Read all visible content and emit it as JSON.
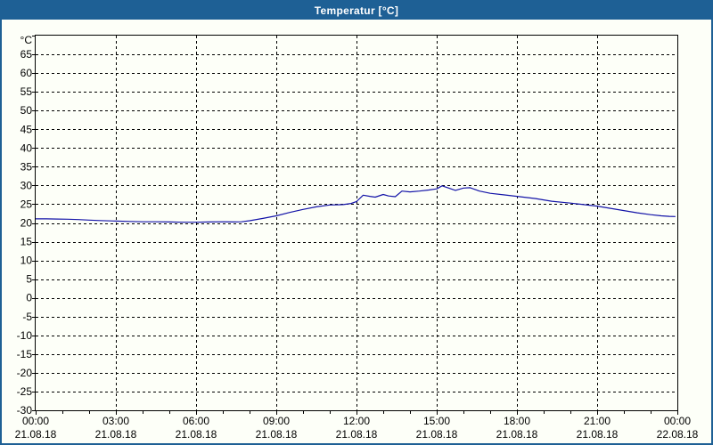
{
  "window": {
    "title": "Temperatur [°C]"
  },
  "colors": {
    "titlebar": "#1E6095",
    "frame": "#1E6095",
    "background": "#FDFFF8",
    "grid": "#000000",
    "axis": "#000000",
    "text": "#000000",
    "line": "#1414A8"
  },
  "chart_data": {
    "type": "line",
    "title": "Temperatur [°C]",
    "ylabel": "°C",
    "ylim": [
      -30,
      70
    ],
    "ytick_step": 5,
    "y_tick_labels": [
      65,
      60,
      55,
      50,
      45,
      40,
      35,
      30,
      25,
      20,
      15,
      10,
      5,
      0,
      -5,
      -10,
      -15,
      -20,
      -25,
      -30
    ],
    "xlim_hours": [
      0,
      24
    ],
    "xtick_step_hours": 3,
    "minor_xtick_hours": 1,
    "grid": "dashed",
    "legend_position": "none",
    "x_ticks": [
      {
        "hour": 0,
        "time": "00:00",
        "date": "21.08.18"
      },
      {
        "hour": 3,
        "time": "03:00",
        "date": "21.08.18"
      },
      {
        "hour": 6,
        "time": "06:00",
        "date": "21.08.18"
      },
      {
        "hour": 9,
        "time": "09:00",
        "date": "21.08.18"
      },
      {
        "hour": 12,
        "time": "12:00",
        "date": "21.08.18"
      },
      {
        "hour": 15,
        "time": "15:00",
        "date": "21.08.18"
      },
      {
        "hour": 18,
        "time": "18:00",
        "date": "21.08.18"
      },
      {
        "hour": 21,
        "time": "21:00",
        "date": "21.08.18"
      },
      {
        "hour": 24,
        "time": "00:00",
        "date": "22.08.18"
      }
    ],
    "series": [
      {
        "name": "Temperatur",
        "color": "#1414A8",
        "points": [
          [
            0.0,
            21.1
          ],
          [
            0.4,
            21.1
          ],
          [
            0.8,
            21.05
          ],
          [
            1.2,
            21.0
          ],
          [
            1.6,
            20.9
          ],
          [
            2.0,
            20.75
          ],
          [
            2.4,
            20.65
          ],
          [
            3.0,
            20.5
          ],
          [
            3.5,
            20.4
          ],
          [
            4.0,
            20.3
          ],
          [
            4.5,
            20.3
          ],
          [
            5.0,
            20.25
          ],
          [
            5.5,
            20.2
          ],
          [
            6.0,
            20.2
          ],
          [
            6.5,
            20.25
          ],
          [
            7.0,
            20.3
          ],
          [
            7.4,
            20.25
          ],
          [
            7.7,
            20.3
          ],
          [
            8.0,
            20.6
          ],
          [
            8.5,
            21.2
          ],
          [
            9.0,
            21.9
          ],
          [
            9.5,
            22.8
          ],
          [
            10.0,
            23.6
          ],
          [
            10.5,
            24.3
          ],
          [
            11.0,
            24.8
          ],
          [
            11.5,
            24.9
          ],
          [
            11.8,
            25.2
          ],
          [
            12.0,
            25.7
          ],
          [
            12.25,
            27.4
          ],
          [
            12.5,
            27.1
          ],
          [
            12.7,
            26.9
          ],
          [
            13.0,
            27.6
          ],
          [
            13.2,
            27.2
          ],
          [
            13.45,
            27.0
          ],
          [
            13.7,
            28.5
          ],
          [
            14.0,
            28.3
          ],
          [
            14.35,
            28.5
          ],
          [
            14.7,
            28.8
          ],
          [
            15.0,
            29.1
          ],
          [
            15.2,
            29.9
          ],
          [
            15.45,
            29.3
          ],
          [
            15.7,
            28.7
          ],
          [
            16.0,
            29.3
          ],
          [
            16.25,
            29.4
          ],
          [
            16.6,
            28.5
          ],
          [
            17.0,
            27.9
          ],
          [
            17.5,
            27.5
          ],
          [
            18.0,
            27.1
          ],
          [
            18.7,
            26.5
          ],
          [
            19.3,
            25.8
          ],
          [
            20.0,
            25.3
          ],
          [
            20.5,
            24.9
          ],
          [
            21.0,
            24.5
          ],
          [
            21.5,
            23.9
          ],
          [
            22.0,
            23.3
          ],
          [
            22.5,
            22.7
          ],
          [
            23.0,
            22.2
          ],
          [
            23.4,
            21.9
          ],
          [
            23.7,
            21.75
          ],
          [
            23.93,
            21.7
          ]
        ]
      }
    ]
  }
}
